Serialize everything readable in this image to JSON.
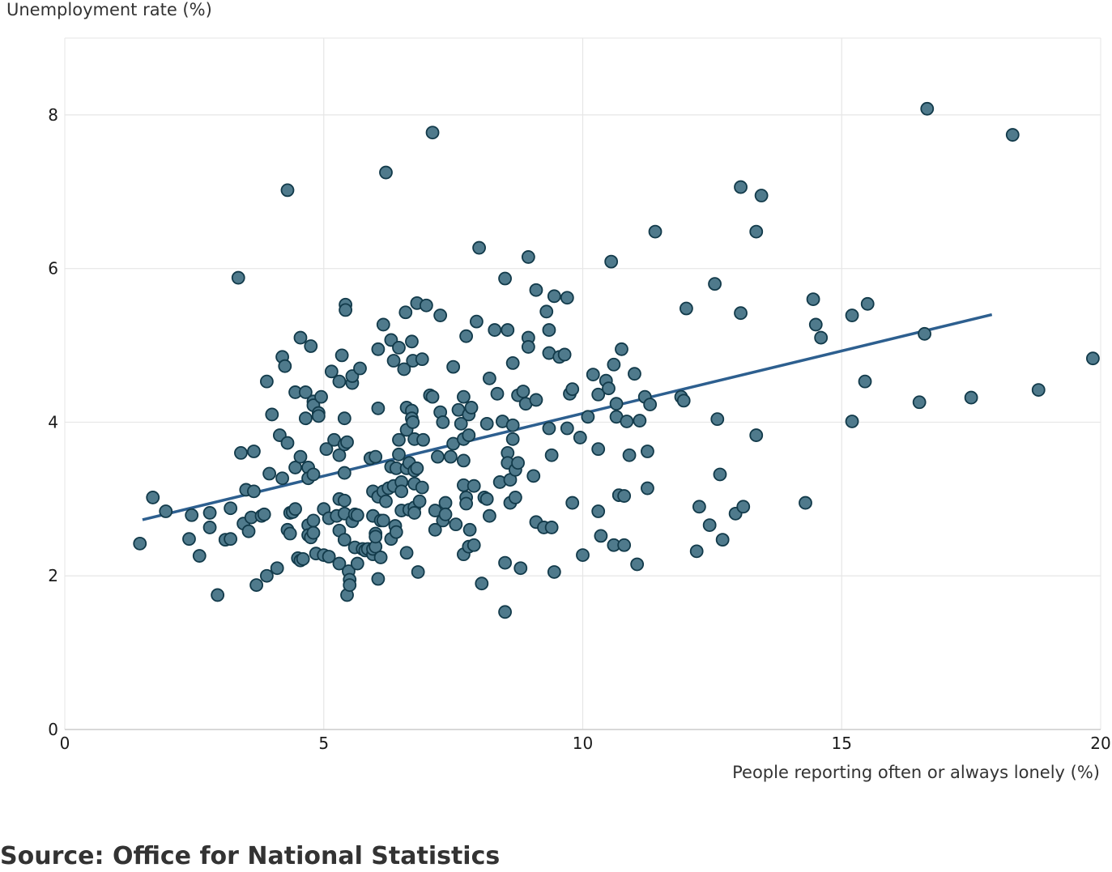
{
  "colors": {
    "point_fill": "#4f7a8c",
    "point_stroke": "#123a4a",
    "trend_line": "#2d5f8f",
    "grid": "#e6e6e6",
    "axis": "#cccccc"
  },
  "source_text": "Source: Office for National Statistics",
  "chart_data": {
    "type": "scatter",
    "title": "",
    "xlabel": "People reporting often or always lonely (%)",
    "ylabel": "Unemployment rate (%)",
    "xlim": [
      0,
      20
    ],
    "ylim": [
      0,
      9
    ],
    "xticks": [
      0,
      5,
      10,
      15,
      20
    ],
    "yticks": [
      0,
      2,
      4,
      6,
      8
    ],
    "grid": true,
    "trendline": {
      "x": [
        1.5,
        17.9
      ],
      "y": [
        2.73,
        5.4
      ]
    },
    "points": [
      [
        1.45,
        2.42
      ],
      [
        1.7,
        3.02
      ],
      [
        1.95,
        2.84
      ],
      [
        2.45,
        2.79
      ],
      [
        2.4,
        2.48
      ],
      [
        2.6,
        2.26
      ],
      [
        2.8,
        2.63
      ],
      [
        2.8,
        2.82
      ],
      [
        2.95,
        1.75
      ],
      [
        3.1,
        2.47
      ],
      [
        3.2,
        2.48
      ],
      [
        3.2,
        2.88
      ],
      [
        3.35,
        5.88
      ],
      [
        3.4,
        3.6
      ],
      [
        3.45,
        2.68
      ],
      [
        3.5,
        3.12
      ],
      [
        3.55,
        2.58
      ],
      [
        3.6,
        2.76
      ],
      [
        3.65,
        3.62
      ],
      [
        3.65,
        3.1
      ],
      [
        3.7,
        1.88
      ],
      [
        3.8,
        2.78
      ],
      [
        3.85,
        2.8
      ],
      [
        3.9,
        2.0
      ],
      [
        3.9,
        4.53
      ],
      [
        3.95,
        3.33
      ],
      [
        4.0,
        4.1
      ],
      [
        4.1,
        2.1
      ],
      [
        4.15,
        3.83
      ],
      [
        4.2,
        4.85
      ],
      [
        4.2,
        3.27
      ],
      [
        4.25,
        4.73
      ],
      [
        4.3,
        7.02
      ],
      [
        4.3,
        3.73
      ],
      [
        4.3,
        2.6
      ],
      [
        4.35,
        2.55
      ],
      [
        4.35,
        2.82
      ],
      [
        4.4,
        2.83
      ],
      [
        4.45,
        2.87
      ],
      [
        4.45,
        4.39
      ],
      [
        4.45,
        3.41
      ],
      [
        4.5,
        2.23
      ],
      [
        4.55,
        5.1
      ],
      [
        4.55,
        3.55
      ],
      [
        4.55,
        2.2
      ],
      [
        4.6,
        2.22
      ],
      [
        4.65,
        4.39
      ],
      [
        4.65,
        4.05
      ],
      [
        4.7,
        3.41
      ],
      [
        4.7,
        3.27
      ],
      [
        4.7,
        2.66
      ],
      [
        4.7,
        2.53
      ],
      [
        4.75,
        4.99
      ],
      [
        4.75,
        2.5
      ],
      [
        4.8,
        4.27
      ],
      [
        4.8,
        4.22
      ],
      [
        4.8,
        3.32
      ],
      [
        4.8,
        2.72
      ],
      [
        4.8,
        2.56
      ],
      [
        4.85,
        2.29
      ],
      [
        4.9,
        4.12
      ],
      [
        4.9,
        4.08
      ],
      [
        4.95,
        4.33
      ],
      [
        5.0,
        2.27
      ],
      [
        5.0,
        2.87
      ],
      [
        5.05,
        3.65
      ],
      [
        5.1,
        2.25
      ],
      [
        5.1,
        2.75
      ],
      [
        5.15,
        4.66
      ],
      [
        5.2,
        3.77
      ],
      [
        5.25,
        2.78
      ],
      [
        5.3,
        2.59
      ],
      [
        5.3,
        3.57
      ],
      [
        5.3,
        4.53
      ],
      [
        5.3,
        2.16
      ],
      [
        5.3,
        3.0
      ],
      [
        5.35,
        4.87
      ],
      [
        5.4,
        3.71
      ],
      [
        5.4,
        3.34
      ],
      [
        5.4,
        4.05
      ],
      [
        5.4,
        2.47
      ],
      [
        5.4,
        2.98
      ],
      [
        5.4,
        2.81
      ],
      [
        5.42,
        5.53
      ],
      [
        5.42,
        5.46
      ],
      [
        5.45,
        3.74
      ],
      [
        5.45,
        1.75
      ],
      [
        5.48,
        2.06
      ],
      [
        5.5,
        1.95
      ],
      [
        5.5,
        1.88
      ],
      [
        5.55,
        4.51
      ],
      [
        5.55,
        4.6
      ],
      [
        5.55,
        2.71
      ],
      [
        5.6,
        2.37
      ],
      [
        5.6,
        2.8
      ],
      [
        5.65,
        2.16
      ],
      [
        5.65,
        2.79
      ],
      [
        5.7,
        4.7
      ],
      [
        5.75,
        2.35
      ],
      [
        5.8,
        2.33
      ],
      [
        5.85,
        2.35
      ],
      [
        5.9,
        3.53
      ],
      [
        5.95,
        2.78
      ],
      [
        5.95,
        3.1
      ],
      [
        5.95,
        2.28
      ],
      [
        5.95,
        2.35
      ],
      [
        6.0,
        3.55
      ],
      [
        6.0,
        2.38
      ],
      [
        6.0,
        2.55
      ],
      [
        6.0,
        2.51
      ],
      [
        6.05,
        3.03
      ],
      [
        6.05,
        1.96
      ],
      [
        6.05,
        4.18
      ],
      [
        6.05,
        4.95
      ],
      [
        6.1,
        2.24
      ],
      [
        6.1,
        2.72
      ],
      [
        6.15,
        2.72
      ],
      [
        6.15,
        3.1
      ],
      [
        6.15,
        5.27
      ],
      [
        6.2,
        7.25
      ],
      [
        6.2,
        2.97
      ],
      [
        6.25,
        3.14
      ],
      [
        6.3,
        5.07
      ],
      [
        6.3,
        3.42
      ],
      [
        6.3,
        2.48
      ],
      [
        6.35,
        4.8
      ],
      [
        6.35,
        3.17
      ],
      [
        6.38,
        2.65
      ],
      [
        6.4,
        2.57
      ],
      [
        6.4,
        3.4
      ],
      [
        6.45,
        4.97
      ],
      [
        6.45,
        3.58
      ],
      [
        6.45,
        3.77
      ],
      [
        6.5,
        2.85
      ],
      [
        6.5,
        3.22
      ],
      [
        6.5,
        3.1
      ],
      [
        6.55,
        4.69
      ],
      [
        6.58,
        5.43
      ],
      [
        6.6,
        4.19
      ],
      [
        6.6,
        3.9
      ],
      [
        6.6,
        3.4
      ],
      [
        6.6,
        2.3
      ],
      [
        6.65,
        3.47
      ],
      [
        6.65,
        2.86
      ],
      [
        6.7,
        5.05
      ],
      [
        6.7,
        4.15
      ],
      [
        6.7,
        4.05
      ],
      [
        6.72,
        4.0
      ],
      [
        6.72,
        4.8
      ],
      [
        6.75,
        3.78
      ],
      [
        6.75,
        3.37
      ],
      [
        6.75,
        3.2
      ],
      [
        6.75,
        2.89
      ],
      [
        6.75,
        2.82
      ],
      [
        6.8,
        3.4
      ],
      [
        6.8,
        5.55
      ],
      [
        6.82,
        2.05
      ],
      [
        6.85,
        2.97
      ],
      [
        6.9,
        3.15
      ],
      [
        6.9,
        4.82
      ],
      [
        6.92,
        3.77
      ],
      [
        6.98,
        5.52
      ],
      [
        7.05,
        4.35
      ],
      [
        7.1,
        4.33
      ],
      [
        7.1,
        7.77
      ],
      [
        7.15,
        2.6
      ],
      [
        7.15,
        2.85
      ],
      [
        7.2,
        3.55
      ],
      [
        7.25,
        5.39
      ],
      [
        7.25,
        4.13
      ],
      [
        7.3,
        2.72
      ],
      [
        7.3,
        4.0
      ],
      [
        7.35,
        2.95
      ],
      [
        7.35,
        2.8
      ],
      [
        7.45,
        3.55
      ],
      [
        7.5,
        3.72
      ],
      [
        7.5,
        4.72
      ],
      [
        7.55,
        2.67
      ],
      [
        7.6,
        4.16
      ],
      [
        7.65,
        3.98
      ],
      [
        7.7,
        4.33
      ],
      [
        7.7,
        3.78
      ],
      [
        7.7,
        3.5
      ],
      [
        7.7,
        3.18
      ],
      [
        7.7,
        2.28
      ],
      [
        7.75,
        5.12
      ],
      [
        7.75,
        3.02
      ],
      [
        7.75,
        2.94
      ],
      [
        7.8,
        4.1
      ],
      [
        7.8,
        3.83
      ],
      [
        7.8,
        2.38
      ],
      [
        7.82,
        2.6
      ],
      [
        7.85,
        4.19
      ],
      [
        7.9,
        2.4
      ],
      [
        7.9,
        3.17
      ],
      [
        7.95,
        5.31
      ],
      [
        8.0,
        6.27
      ],
      [
        8.05,
        1.9
      ],
      [
        8.1,
        3.02
      ],
      [
        8.15,
        3.98
      ],
      [
        8.15,
        3.0
      ],
      [
        8.2,
        4.57
      ],
      [
        8.2,
        2.78
      ],
      [
        8.3,
        5.2
      ],
      [
        8.35,
        4.37
      ],
      [
        8.4,
        3.22
      ],
      [
        8.45,
        4.01
      ],
      [
        8.5,
        1.53
      ],
      [
        8.5,
        2.17
      ],
      [
        8.5,
        5.87
      ],
      [
        8.55,
        5.2
      ],
      [
        8.55,
        3.6
      ],
      [
        8.55,
        3.47
      ],
      [
        8.6,
        3.25
      ],
      [
        8.6,
        2.95
      ],
      [
        8.65,
        4.77
      ],
      [
        8.65,
        3.96
      ],
      [
        8.65,
        3.78
      ],
      [
        8.7,
        3.38
      ],
      [
        8.7,
        3.02
      ],
      [
        8.75,
        3.47
      ],
      [
        8.75,
        4.35
      ],
      [
        8.8,
        2.1
      ],
      [
        8.85,
        4.4
      ],
      [
        8.9,
        4.24
      ],
      [
        8.95,
        5.1
      ],
      [
        8.95,
        4.98
      ],
      [
        8.95,
        6.15
      ],
      [
        9.05,
        3.3
      ],
      [
        9.1,
        2.7
      ],
      [
        9.1,
        4.29
      ],
      [
        9.1,
        5.72
      ],
      [
        9.25,
        2.63
      ],
      [
        9.3,
        5.44
      ],
      [
        9.35,
        5.2
      ],
      [
        9.35,
        4.9
      ],
      [
        9.35,
        3.92
      ],
      [
        9.4,
        3.57
      ],
      [
        9.4,
        2.63
      ],
      [
        9.45,
        5.64
      ],
      [
        9.45,
        2.05
      ],
      [
        9.55,
        4.85
      ],
      [
        9.65,
        4.88
      ],
      [
        9.7,
        5.62
      ],
      [
        9.7,
        3.92
      ],
      [
        9.75,
        4.37
      ],
      [
        9.8,
        4.43
      ],
      [
        9.8,
        2.95
      ],
      [
        9.95,
        3.8
      ],
      [
        10.0,
        2.27
      ],
      [
        10.1,
        4.07
      ],
      [
        10.2,
        4.62
      ],
      [
        10.3,
        4.36
      ],
      [
        10.3,
        3.65
      ],
      [
        10.3,
        2.84
      ],
      [
        10.35,
        2.52
      ],
      [
        10.45,
        4.54
      ],
      [
        10.5,
        4.44
      ],
      [
        10.55,
        6.09
      ],
      [
        10.6,
        4.75
      ],
      [
        10.6,
        2.4
      ],
      [
        10.65,
        4.07
      ],
      [
        10.65,
        4.24
      ],
      [
        10.7,
        3.05
      ],
      [
        10.75,
        4.95
      ],
      [
        10.8,
        2.4
      ],
      [
        10.8,
        3.04
      ],
      [
        10.85,
        4.01
      ],
      [
        10.9,
        3.57
      ],
      [
        11.0,
        4.63
      ],
      [
        11.05,
        2.15
      ],
      [
        11.1,
        4.02
      ],
      [
        11.2,
        4.33
      ],
      [
        11.25,
        3.62
      ],
      [
        11.25,
        3.14
      ],
      [
        11.3,
        4.23
      ],
      [
        11.4,
        6.48
      ],
      [
        11.9,
        4.33
      ],
      [
        11.95,
        4.28
      ],
      [
        12.0,
        5.48
      ],
      [
        12.2,
        2.32
      ],
      [
        12.25,
        2.9
      ],
      [
        12.45,
        2.66
      ],
      [
        12.55,
        5.8
      ],
      [
        12.6,
        4.04
      ],
      [
        12.65,
        3.32
      ],
      [
        12.7,
        2.47
      ],
      [
        12.95,
        2.81
      ],
      [
        13.05,
        7.06
      ],
      [
        13.05,
        5.42
      ],
      [
        13.1,
        2.9
      ],
      [
        13.35,
        3.83
      ],
      [
        13.35,
        6.48
      ],
      [
        13.45,
        6.95
      ],
      [
        14.3,
        2.95
      ],
      [
        14.45,
        5.6
      ],
      [
        14.5,
        5.27
      ],
      [
        14.6,
        5.1
      ],
      [
        15.2,
        4.01
      ],
      [
        15.2,
        5.39
      ],
      [
        15.45,
        4.53
      ],
      [
        15.5,
        5.54
      ],
      [
        16.5,
        4.26
      ],
      [
        16.6,
        5.15
      ],
      [
        16.65,
        8.08
      ],
      [
        17.5,
        4.32
      ],
      [
        18.3,
        7.74
      ],
      [
        18.8,
        4.42
      ],
      [
        19.85,
        4.83
      ]
    ]
  }
}
